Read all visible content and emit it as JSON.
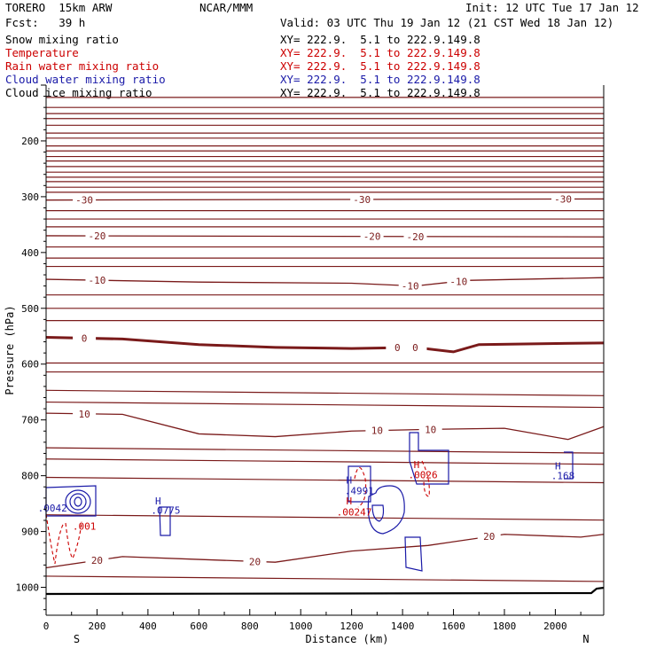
{
  "header": {
    "model": "TORERO  15km ARW",
    "org": "NCAR/MMM",
    "init": "Init: 12 UTC Tue 17 Jan 12",
    "fcst": "Fcst:   39 h",
    "valid": "Valid: 03 UTC Thu 19 Jan 12 (21 CST Wed 18 Jan 12)"
  },
  "fields": [
    {
      "name": "Snow mixing ratio",
      "xy": "XY= 222.9.  5.1 to 222.9.149.8",
      "color": "#000000"
    },
    {
      "name": "Temperature",
      "xy": "XY= 222.9.  5.1 to 222.9.149.8",
      "color": "#cc0000"
    },
    {
      "name": "Rain water mixing ratio",
      "xy": "XY= 222.9.  5.1 to 222.9.149.8",
      "color": "#cc0000"
    },
    {
      "name": "Cloud water mixing ratio",
      "xy": "XY= 222.9.  5.1 to 222.9.149.8",
      "color": "#1a1aa8"
    },
    {
      "name": "Cloud ice mixing ratio",
      "xy": "XY= 222.9.  5.1 to 222.9.149.8",
      "color": "#000000"
    }
  ],
  "chart_data": {
    "type": "line",
    "title": "",
    "xlabel": "Distance (km)",
    "ylabel": "Pressure (hPa)",
    "xlim": [
      0,
      2190
    ],
    "ylim": [
      1050,
      100
    ],
    "x_ticks": [
      0,
      200,
      400,
      600,
      800,
      1000,
      1200,
      1400,
      1600,
      1800,
      2000
    ],
    "y_ticks": [
      200,
      300,
      400,
      500,
      600,
      700,
      800,
      900,
      1000
    ],
    "x_end_labels": {
      "left": "S",
      "right": "N"
    },
    "isotherm_color": "#7a1a1a",
    "isotherms": [
      {
        "label": "-30",
        "label_x": [
          150,
          1240,
          2030
        ],
        "x": [
          0,
          2190
        ],
        "p": [
          306,
          304
        ]
      },
      {
        "label": "-20",
        "label_x": [
          200,
          1280,
          1450
        ],
        "x": [
          0,
          2190
        ],
        "p": [
          370,
          372
        ]
      },
      {
        "label": "-10",
        "label_x": [
          200,
          1430,
          1620
        ],
        "x": [
          0,
          600,
          1200,
          1450,
          1650,
          2190
        ],
        "p": [
          448,
          453,
          455,
          460,
          450,
          445
        ]
      },
      {
        "label": "0",
        "label_x": [
          150,
          1380,
          1450
        ],
        "bold": true,
        "x": [
          0,
          300,
          600,
          900,
          1200,
          1450,
          1600,
          1700,
          2190
        ],
        "p": [
          552,
          555,
          565,
          570,
          572,
          570,
          578,
          565,
          562
        ]
      },
      {
        "label": "10",
        "label_x": [
          150,
          1300,
          1510
        ],
        "x": [
          0,
          300,
          600,
          900,
          1200,
          1500,
          1800,
          2050,
          2190
        ],
        "p": [
          688,
          690,
          725,
          730,
          720,
          717,
          715,
          735,
          712
        ]
      },
      {
        "label": "20",
        "label_x": [
          200,
          820,
          1740
        ],
        "x": [
          0,
          300,
          600,
          900,
          1200,
          1500,
          1800,
          2100,
          2190
        ],
        "p": [
          965,
          945,
          950,
          955,
          935,
          925,
          905,
          910,
          905
        ]
      }
    ],
    "lines_hpa": [
      122,
      140,
      151,
      160,
      172,
      186,
      195,
      209,
      218,
      228,
      236,
      246,
      256,
      265,
      273,
      283,
      292,
      325,
      340,
      354,
      390,
      410,
      425,
      476,
      500,
      522,
      598,
      614,
      647,
      668,
      750,
      770,
      803,
      870,
      980
    ],
    "annotations": [
      {
        "text": "H",
        "x": 440,
        "p": 845,
        "color": "#1a1aa8"
      },
      {
        "text": ".0775",
        "x": 470,
        "p": 862,
        "color": "#1a1aa8"
      },
      {
        "text": ".0042",
        "x": 25,
        "p": 858,
        "color": "#1a1aa8"
      },
      {
        "text": ".001",
        "x": 150,
        "p": 890,
        "color": "#cc0000"
      },
      {
        "text": "H",
        "x": 1190,
        "p": 808,
        "color": "#1a1aa8"
      },
      {
        "text": ".4991",
        "x": 1230,
        "p": 827,
        "color": "#1a1aa8"
      },
      {
        "text": "H",
        "x": 1190,
        "p": 845,
        "color": "#cc0000"
      },
      {
        "text": ".00247",
        "x": 1210,
        "p": 865,
        "color": "#cc0000"
      },
      {
        "text": "H",
        "x": 1455,
        "p": 780,
        "color": "#cc0000"
      },
      {
        "text": ".0026",
        "x": 1480,
        "p": 798,
        "color": "#cc0000"
      },
      {
        "text": "H",
        "x": 2010,
        "p": 782,
        "color": "#1a1aa8"
      },
      {
        "text": ".168",
        "x": 2030,
        "p": 800,
        "color": "#1a1aa8"
      }
    ]
  }
}
